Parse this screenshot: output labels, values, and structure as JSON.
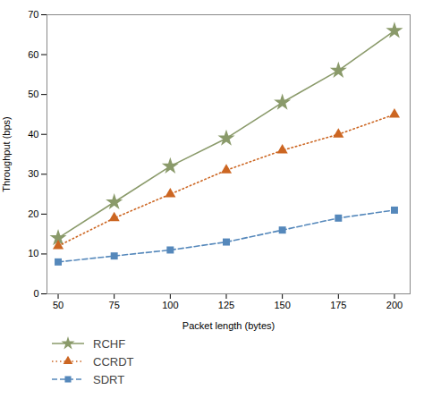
{
  "chart_data": {
    "type": "line",
    "xlabel": "Packet length (bytes)",
    "ylabel": "Throughput (bps)",
    "x": [
      50,
      75,
      100,
      125,
      150,
      175,
      200
    ],
    "series": [
      {
        "name": "RCHF",
        "color": "#8a9a6a",
        "values": [
          14,
          23,
          32,
          39,
          48,
          56,
          66
        ],
        "marker": "star",
        "line_style": "solid"
      },
      {
        "name": "CCRDT",
        "color": "#cc6622",
        "values": [
          12,
          19,
          25,
          31,
          36,
          40,
          45
        ],
        "marker": "triangle",
        "line_style": "dotted"
      },
      {
        "name": "SDRT",
        "color": "#5588bb",
        "values": [
          8,
          9.5,
          11,
          13,
          16,
          19,
          21
        ],
        "marker": "square",
        "line_style": "dashed"
      }
    ],
    "xlim": [
      45,
      207
    ],
    "ylim": [
      0,
      70
    ],
    "xticks": [
      50,
      75,
      100,
      125,
      150,
      175,
      200
    ],
    "yticks": [
      0,
      10,
      20,
      30,
      40,
      50,
      60,
      70
    ],
    "grid": false,
    "legend": "below"
  }
}
